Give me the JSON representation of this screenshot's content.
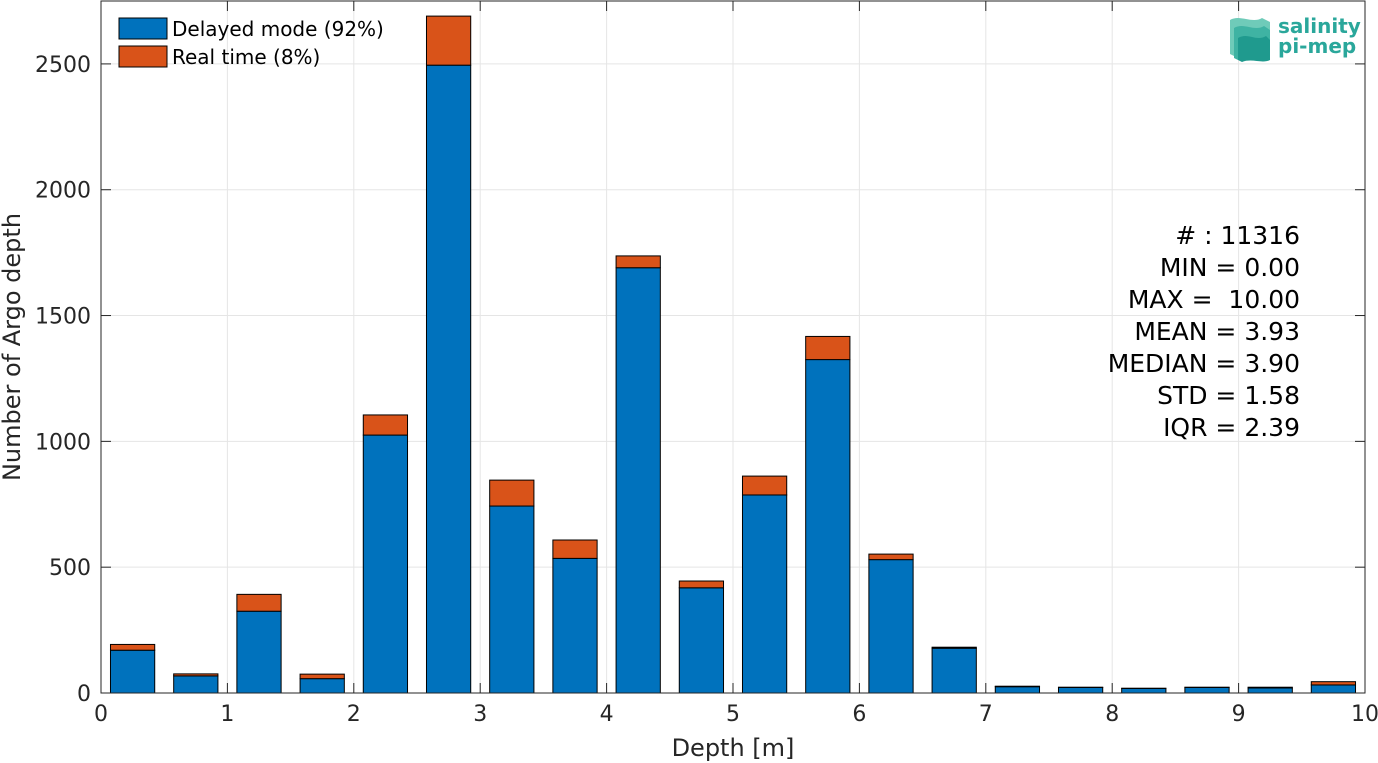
{
  "chart_data": {
    "type": "bar",
    "stacked": true,
    "xlabel": "Depth [m]",
    "ylabel": "Number of Argo depth",
    "xlim": [
      0,
      10
    ],
    "ylim": [
      0,
      2750
    ],
    "xticks": [
      0,
      1,
      2,
      3,
      4,
      5,
      6,
      7,
      8,
      9,
      10
    ],
    "yticks": [
      0,
      500,
      1000,
      1500,
      2000,
      2500
    ],
    "grid": true,
    "legend_position": "top-left",
    "bin_centers": [
      0.25,
      0.75,
      1.25,
      1.75,
      2.25,
      2.75,
      3.25,
      3.75,
      4.25,
      4.75,
      5.25,
      5.75,
      6.25,
      6.75,
      7.25,
      7.75,
      8.25,
      8.75,
      9.25,
      9.75
    ],
    "series": [
      {
        "name": "Delayed mode (92%)",
        "color": "#0072bd",
        "values": [
          170,
          68,
          325,
          57,
          1025,
          2495,
          743,
          535,
          1690,
          418,
          787,
          1325,
          530,
          178,
          25,
          22,
          18,
          22,
          20,
          32
        ]
      },
      {
        "name": "Real time (8%)",
        "color": "#d95319",
        "values": [
          23,
          8,
          67,
          18,
          80,
          195,
          103,
          73,
          47,
          27,
          75,
          92,
          22,
          4,
          2,
          1,
          1,
          1,
          3,
          13
        ]
      }
    ]
  },
  "stats": [
    "# : 11316",
    "MIN = 0.00",
    "MAX =  10.00",
    "MEAN = 3.93",
    "MEDIAN = 3.90",
    "STD = 1.58",
    "IQR = 2.39"
  ],
  "logo": {
    "line1": "salinity",
    "line2": "pi-mep",
    "color": "#2aa79b"
  }
}
